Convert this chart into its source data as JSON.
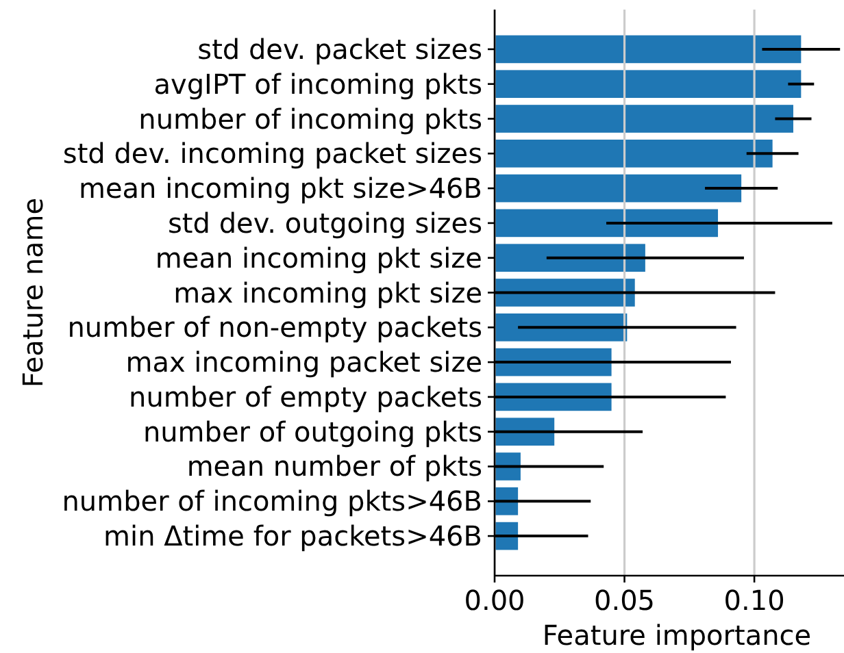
{
  "chart_data": {
    "type": "bar",
    "orientation": "horizontal",
    "categories": [
      "std dev. packet sizes",
      "avgIPT of incoming pkts",
      "number of incoming pkts",
      "std dev. incoming packet sizes",
      "mean incoming pkt size>46B",
      "std dev. outgoing sizes",
      "mean incoming pkt size",
      "max incoming pkt size",
      "number of non-empty packets",
      "max incoming packet size",
      "number of empty packets",
      "number of outgoing pkts",
      "mean number of pkts",
      "number of incoming pkts>46B",
      "min Δtime for packets>46B"
    ],
    "values": [
      0.118,
      0.118,
      0.115,
      0.107,
      0.095,
      0.086,
      0.058,
      0.054,
      0.051,
      0.045,
      0.045,
      0.023,
      0.01,
      0.009,
      0.009
    ],
    "errors": [
      [
        0.103,
        0.133
      ],
      [
        0.113,
        0.123
      ],
      [
        0.108,
        0.122
      ],
      [
        0.097,
        0.117
      ],
      [
        0.081,
        0.109
      ],
      [
        0.043,
        0.13
      ],
      [
        0.02,
        0.096
      ],
      [
        0,
        0.108
      ],
      [
        0.009,
        0.093
      ],
      [
        0,
        0.091
      ],
      [
        0,
        0.089
      ],
      [
        0,
        0.057
      ],
      [
        0,
        0.042
      ],
      [
        0,
        0.037
      ],
      [
        0,
        0.036
      ]
    ],
    "color": "#1f77b4",
    "xlim": [
      0,
      0.134
    ],
    "xticks": [
      {
        "value": 0,
        "label": "0.00"
      },
      {
        "value": 0.05,
        "label": "0.05"
      },
      {
        "value": 0.1,
        "label": "0.10"
      }
    ],
    "xlabel": "Feature importance",
    "ylabel": "Feature name",
    "grid": "x"
  }
}
